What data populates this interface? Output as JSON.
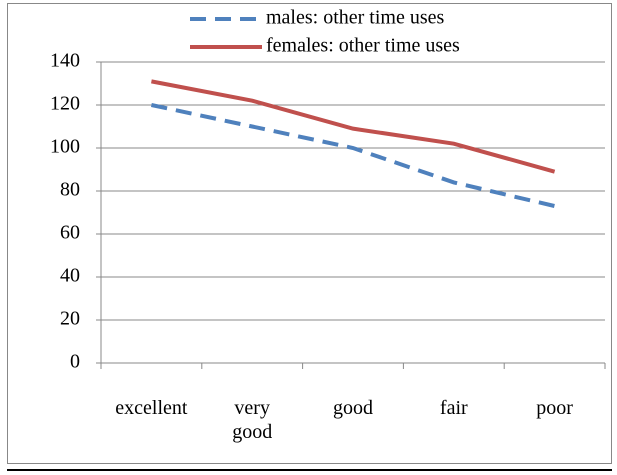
{
  "chart_data": {
    "type": "line",
    "categories": [
      "excellent",
      "very good",
      "good",
      "fair",
      "poor"
    ],
    "series": [
      {
        "name": "males: other time uses",
        "color": "#4f81bd",
        "dash": true,
        "values": [
          120,
          110,
          100,
          84,
          73
        ]
      },
      {
        "name": "females: other time uses",
        "color": "#c0504d",
        "dash": false,
        "values": [
          131,
          122,
          109,
          102,
          89
        ]
      }
    ],
    "ylim": [
      0,
      140
    ],
    "yticks": [
      0,
      20,
      40,
      60,
      80,
      100,
      120,
      140
    ],
    "grid": true,
    "legend": "top"
  }
}
